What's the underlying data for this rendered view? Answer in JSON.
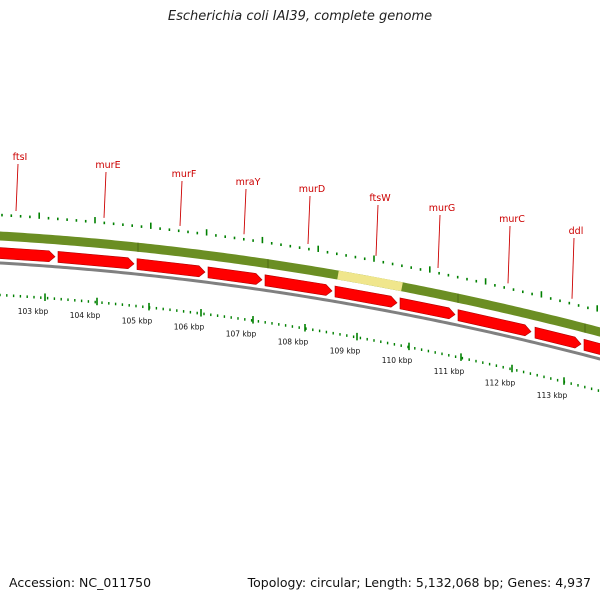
{
  "title": "Escherichia coli IAI39, complete genome",
  "footer": {
    "accession": "Accession: NC_011750",
    "summary": "Topology: circular; Length: 5,132,068 bp; Genes: 4,937"
  },
  "colors": {
    "gene_label": "#cc0000",
    "cds_arrow": "#ff0000",
    "gene_band": "#6b8e23",
    "highlight_band": "#f0e68c",
    "backbone": "#808080",
    "tick": "#008000",
    "text": "#111111"
  },
  "genes": [
    {
      "name": "ftsI"
    },
    {
      "name": "murE"
    },
    {
      "name": "murF"
    },
    {
      "name": "mraY"
    },
    {
      "name": "murD"
    },
    {
      "name": "ftsW"
    },
    {
      "name": "murG"
    },
    {
      "name": "murC"
    },
    {
      "name": "ddl"
    }
  ],
  "ruler_labels": [
    "103 kbp",
    "104 kbp",
    "105 kbp",
    "106 kbp",
    "107 kbp",
    "108 kbp",
    "109 kbp",
    "110 kbp",
    "111 kbp",
    "112 kbp",
    "113 kbp"
  ]
}
